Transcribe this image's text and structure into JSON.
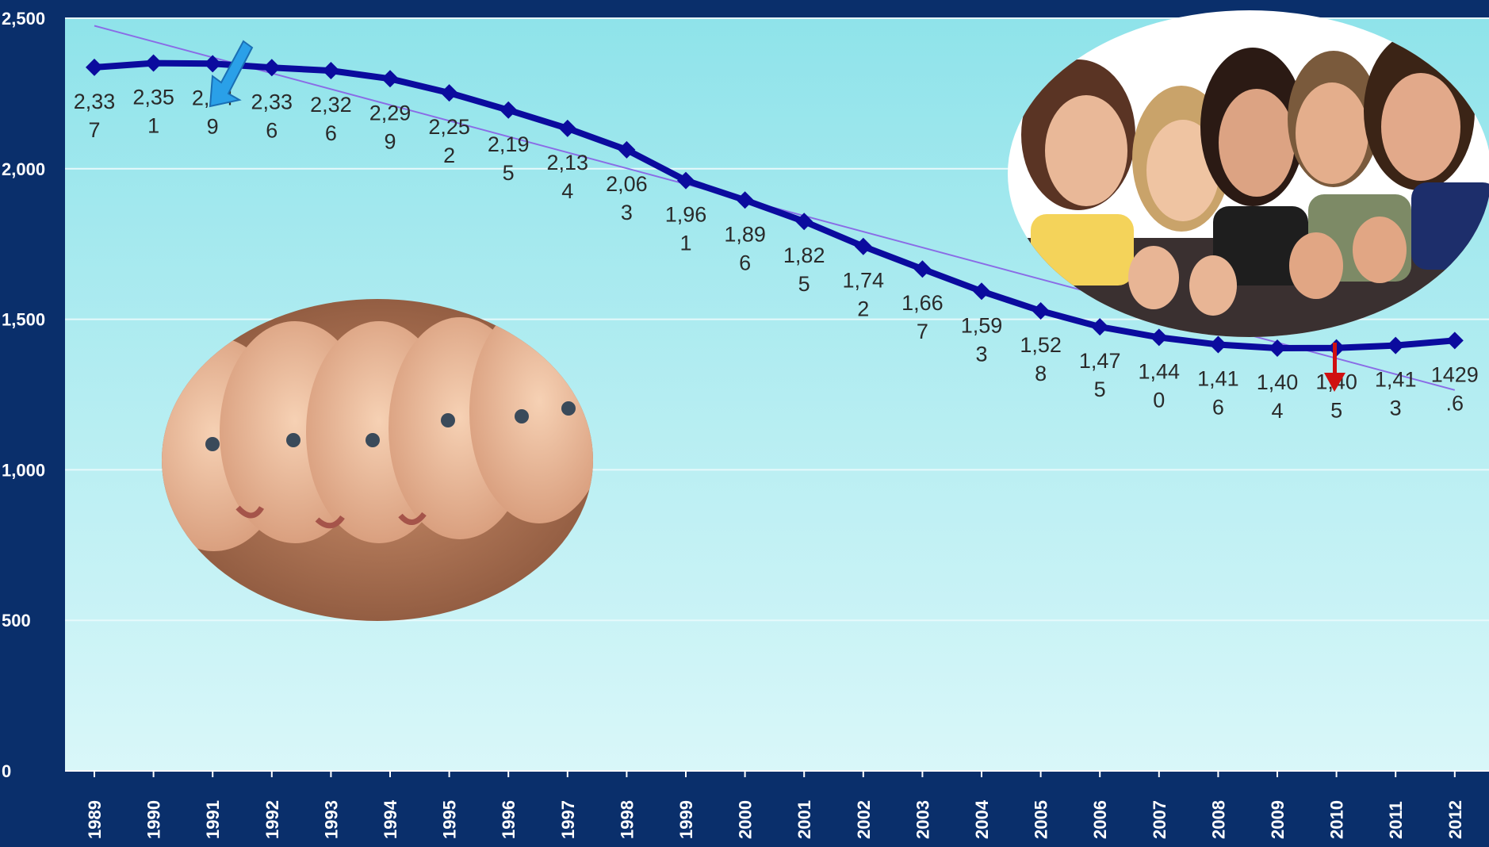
{
  "chart_data": {
    "type": "line",
    "title": "",
    "xlabel": "",
    "ylabel": "",
    "ylim": [
      0,
      2500
    ],
    "yticks": [
      0,
      500,
      1000,
      1500,
      2000,
      2500
    ],
    "ytick_labels": [
      "0",
      "500",
      "1,000",
      "1,500",
      "2,000",
      "2,500"
    ],
    "grid": true,
    "legend": "none",
    "x": [
      "1989",
      "1990",
      "1991",
      "1992",
      "1993",
      "1994",
      "1995",
      "1996",
      "1997",
      "1998",
      "1999",
      "2000",
      "2001",
      "2002",
      "2003",
      "2004",
      "2005",
      "2006",
      "2007",
      "2008",
      "2009",
      "2010",
      "2011",
      "2012"
    ],
    "series": [
      {
        "values": [
          2337,
          2351,
          2349,
          2336,
          2326,
          2299,
          2252,
          2195,
          2134,
          2063,
          1961,
          1896,
          1825,
          1742,
          1667,
          1593,
          1528,
          1475,
          1440,
          1416,
          1404,
          1405,
          1413,
          1429.6
        ],
        "data_labels": [
          [
            "2,33",
            "7"
          ],
          [
            "2,35",
            "1"
          ],
          [
            "2,34",
            "9"
          ],
          [
            "2,33",
            "6"
          ],
          [
            "2,32",
            "6"
          ],
          [
            "2,29",
            "9"
          ],
          [
            "2,25",
            "2"
          ],
          [
            "2,19",
            "5"
          ],
          [
            "2,13",
            "4"
          ],
          [
            "2,06",
            "3"
          ],
          [
            "1,96",
            "1"
          ],
          [
            "1,89",
            "6"
          ],
          [
            "1,82",
            "5"
          ],
          [
            "1,74",
            "2"
          ],
          [
            "1,66",
            "7"
          ],
          [
            "1,59",
            "3"
          ],
          [
            "1,52",
            "8"
          ],
          [
            "1,47",
            "5"
          ],
          [
            "1,44",
            "0"
          ],
          [
            "1,41",
            "6"
          ],
          [
            "1,40",
            "4"
          ],
          [
            "1,40",
            "5"
          ],
          [
            "1,41",
            "3"
          ],
          [
            "1429",
            ".6"
          ]
        ],
        "color": "#0b0b9e"
      }
    ],
    "trendline": {
      "start": 2475,
      "end": 1265,
      "color": "#8a6ce6"
    },
    "annotations": [
      {
        "kind": "arrow",
        "target_year": "1991",
        "color": "#2aa0e8"
      },
      {
        "kind": "arrow",
        "target_year": "2010",
        "color": "#d01010"
      }
    ]
  },
  "colors": {
    "frame": "#0a2f6b",
    "plot_top": "#8fe3ea",
    "plot_bottom": "#d9f7f9",
    "gridline": "#e6f9fb"
  },
  "photos": [
    {
      "name": "babies-photo",
      "icon": "baby-faces"
    },
    {
      "name": "teenagers-photo",
      "icon": "group-thumbs-up"
    }
  ]
}
